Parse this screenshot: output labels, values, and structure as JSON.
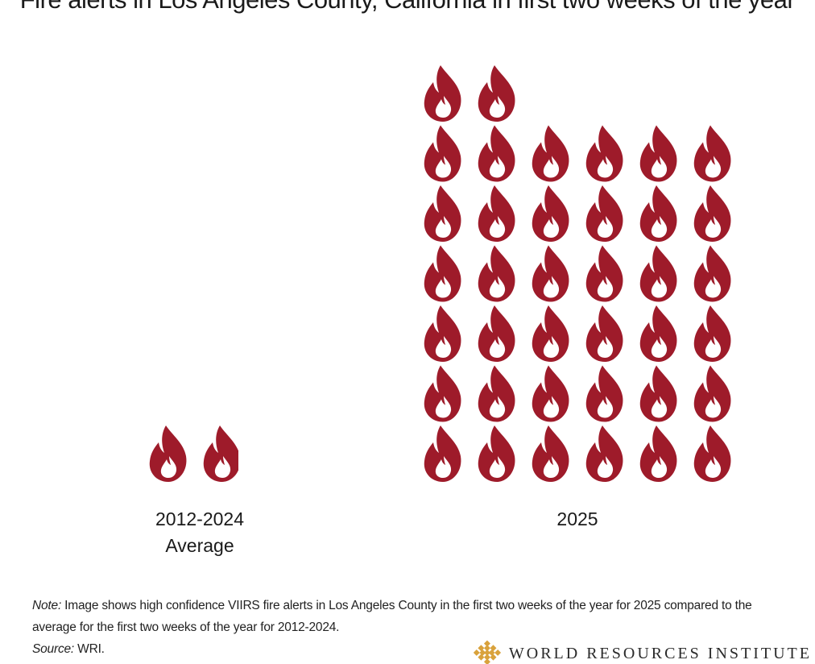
{
  "title": "Fire alerts in Los Angeles County, California in first two weeks of the year",
  "colors": {
    "flame": "#9e1b2a",
    "text": "#1a1a1a",
    "logo": "#d9a23c"
  },
  "icons": {
    "unit": "flame-icon",
    "logo": "wri-logo-icon"
  },
  "chart_data": {
    "type": "pictogram",
    "title": "Fire alerts in Los Angeles County, California in first two weeks of the year",
    "unit": "one flame icon per unit of fire alerts",
    "categories": [
      "2012-2024\nAverage",
      "2025"
    ],
    "category_lines": [
      [
        "2012-2024",
        "Average"
      ],
      [
        "2025"
      ]
    ],
    "values": [
      1.9,
      38
    ],
    "icons_per_row": [
      2,
      6
    ],
    "legend": "none",
    "grid": false
  },
  "note": {
    "label": "Note:",
    "text": "Image shows high confidence VIIRS fire alerts in Los Angeles County in the first two weeks of the year for 2025 compared to the average for the first two weeks of the year for 2012-2024.",
    "source_label": "Source:",
    "source": "WRI."
  },
  "logo": {
    "text": "WORLD RESOURCES INSTITUTE"
  }
}
